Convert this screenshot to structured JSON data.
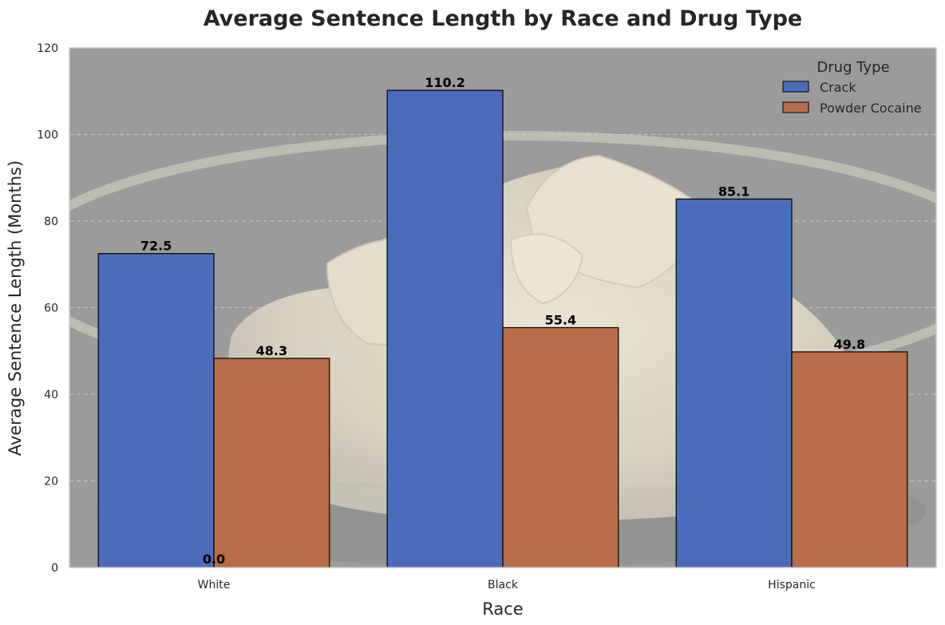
{
  "chart_data": {
    "type": "bar",
    "title": "Average Sentence Length by Race and Drug Type",
    "xlabel": "Race",
    "ylabel": "Average Sentence Length (Months)",
    "categories": [
      "White",
      "Black",
      "Hispanic"
    ],
    "series": [
      {
        "name": "Crack",
        "color": "#4a6cbb",
        "values": [
          72.5,
          110.2,
          85.1
        ]
      },
      {
        "name": "Powder Cocaine",
        "color": "#b86c48",
        "values": [
          48.3,
          55.4,
          49.8
        ]
      }
    ],
    "extra_labels": [
      {
        "category": "White",
        "text": "0.0"
      }
    ],
    "ylim": [
      0,
      120
    ],
    "yticks": [
      0,
      20,
      40,
      60,
      80,
      100,
      120
    ],
    "grid": true,
    "legend": {
      "title": "Drug Type",
      "placement": "top-right"
    },
    "background": "photo of white crystalline powder on a grey surface"
  }
}
